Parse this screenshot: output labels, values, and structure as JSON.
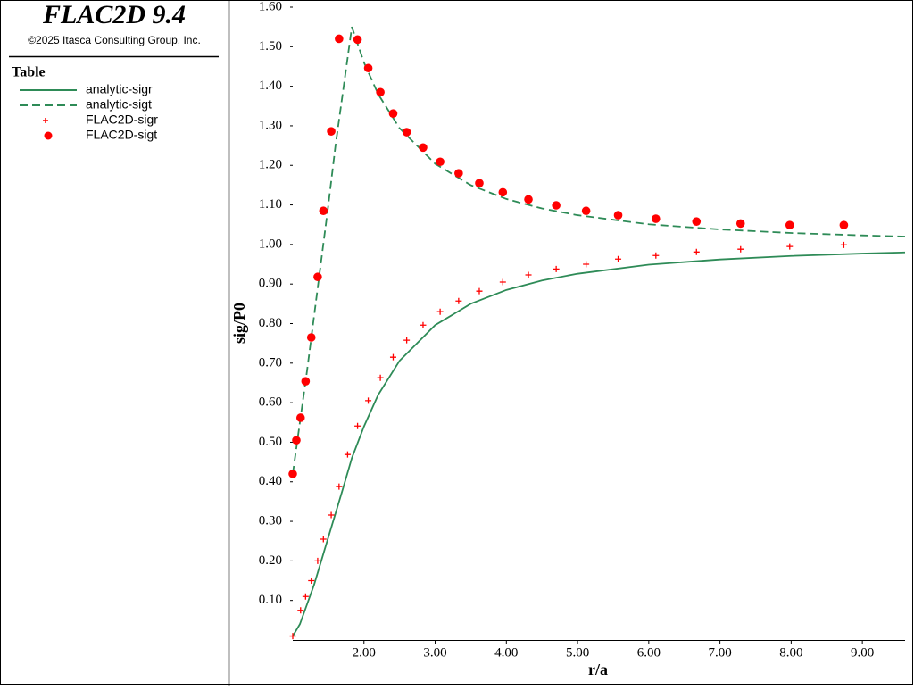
{
  "chart_data": {
    "type": "line",
    "title": "FLAC2D 9.4",
    "subtitle": "©2025 Itasca Consulting Group, Inc.",
    "legend_title": "Table",
    "xlabel": "r/a",
    "ylabel": "sig/P0",
    "xlim": [
      1,
      9.6
    ],
    "ylim": [
      0,
      1.6
    ],
    "xticks": [
      {
        "value": 2,
        "label": "2.00"
      },
      {
        "value": 3,
        "label": "3.00"
      },
      {
        "value": 4,
        "label": "4.00"
      },
      {
        "value": 5,
        "label": "5.00"
      },
      {
        "value": 6,
        "label": "6.00"
      },
      {
        "value": 7,
        "label": "7.00"
      },
      {
        "value": 8,
        "label": "8.00"
      },
      {
        "value": 9,
        "label": "9.00"
      }
    ],
    "yticks": [
      {
        "value": 0.1,
        "label": "0.10"
      },
      {
        "value": 0.2,
        "label": "0.20"
      },
      {
        "value": 0.3,
        "label": "0.30"
      },
      {
        "value": 0.4,
        "label": "0.40"
      },
      {
        "value": 0.5,
        "label": "0.50"
      },
      {
        "value": 0.6,
        "label": "0.60"
      },
      {
        "value": 0.7,
        "label": "0.70"
      },
      {
        "value": 0.8,
        "label": "0.80"
      },
      {
        "value": 0.9,
        "label": "0.90"
      },
      {
        "value": 1.0,
        "label": "1.00"
      },
      {
        "value": 1.1,
        "label": "1.10"
      },
      {
        "value": 1.2,
        "label": "1.20"
      },
      {
        "value": 1.3,
        "label": "1.30"
      },
      {
        "value": 1.4,
        "label": "1.40"
      },
      {
        "value": 1.5,
        "label": "1.50"
      },
      {
        "value": 1.6,
        "label": "1.60"
      }
    ],
    "series": [
      {
        "name": "analytic-sigr",
        "color": "#2e8b57",
        "style": "solid",
        "x": [
          1.0,
          1.1,
          1.2,
          1.3,
          1.4,
          1.5,
          1.6,
          1.7,
          1.83,
          2.0,
          2.2,
          2.5,
          3.0,
          3.5,
          4.0,
          4.5,
          5.0,
          6.0,
          7.0,
          8.0,
          9.0,
          9.6
        ],
        "values": [
          0.01,
          0.04,
          0.09,
          0.14,
          0.2,
          0.26,
          0.32,
          0.38,
          0.46,
          0.54,
          0.62,
          0.706,
          0.796,
          0.85,
          0.885,
          0.909,
          0.926,
          0.949,
          0.962,
          0.971,
          0.977,
          0.98
        ]
      },
      {
        "name": "analytic-sigt",
        "color": "#2e8b57",
        "style": "dashed",
        "x": [
          1.0,
          1.1,
          1.2,
          1.3,
          1.4,
          1.5,
          1.6,
          1.7,
          1.83,
          2.0,
          2.2,
          2.5,
          3.0,
          3.5,
          4.0,
          4.5,
          5.0,
          6.0,
          7.0,
          8.0,
          9.0,
          9.6
        ],
        "values": [
          0.42,
          0.55,
          0.68,
          0.82,
          0.96,
          1.1,
          1.25,
          1.38,
          1.55,
          1.46,
          1.38,
          1.294,
          1.204,
          1.15,
          1.115,
          1.091,
          1.074,
          1.051,
          1.038,
          1.029,
          1.023,
          1.02
        ]
      },
      {
        "name": "FLAC2D-sigr",
        "color": "#ff0000",
        "style": "plus",
        "x": [
          1.0,
          1.11,
          1.18,
          1.26,
          1.35,
          1.43,
          1.54,
          1.65,
          1.77,
          1.91,
          2.06,
          2.23,
          2.41,
          2.6,
          2.83,
          3.07,
          3.33,
          3.62,
          3.95,
          4.31,
          4.7,
          5.12,
          5.57,
          6.1,
          6.67,
          7.29,
          7.98,
          8.74
        ],
        "values": [
          0.01,
          0.075,
          0.11,
          0.15,
          0.2,
          0.255,
          0.316,
          0.388,
          0.469,
          0.541,
          0.605,
          0.663,
          0.715,
          0.758,
          0.796,
          0.83,
          0.857,
          0.882,
          0.905,
          0.923,
          0.938,
          0.95,
          0.963,
          0.972,
          0.981,
          0.988,
          0.995,
          0.999
        ]
      },
      {
        "name": "FLAC2D-sigt",
        "color": "#ff0000",
        "style": "circle",
        "x": [
          1.0,
          1.05,
          1.11,
          1.18,
          1.26,
          1.35,
          1.43,
          1.54,
          1.65,
          1.91,
          2.06,
          2.23,
          2.41,
          2.6,
          2.83,
          3.07,
          3.33,
          3.62,
          3.95,
          4.31,
          4.7,
          5.12,
          5.57,
          6.1,
          6.67,
          7.29,
          7.98,
          8.74
        ],
        "values": [
          0.42,
          0.505,
          0.562,
          0.654,
          0.765,
          0.918,
          1.085,
          1.286,
          1.52,
          1.518,
          1.446,
          1.385,
          1.331,
          1.284,
          1.245,
          1.209,
          1.18,
          1.155,
          1.132,
          1.114,
          1.099,
          1.085,
          1.074,
          1.065,
          1.058,
          1.053,
          1.049,
          1.049
        ]
      }
    ]
  }
}
